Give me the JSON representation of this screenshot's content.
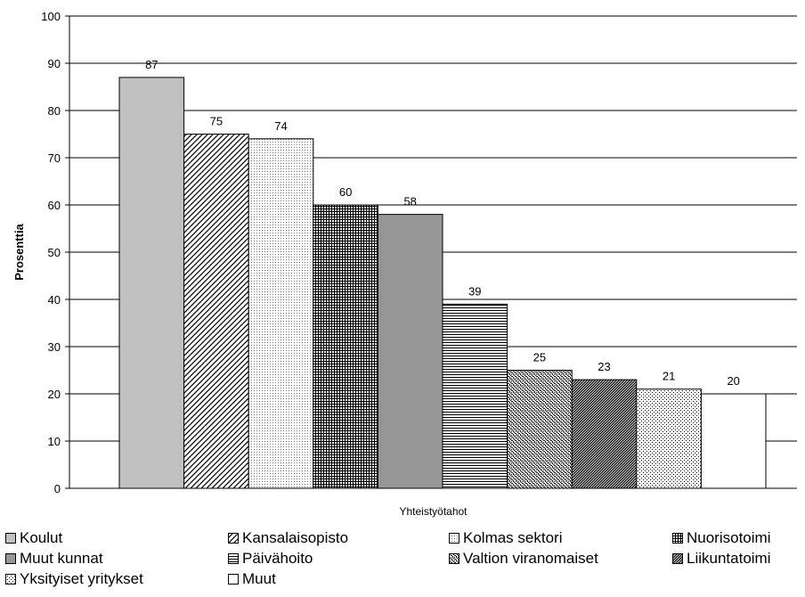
{
  "chart_data": {
    "type": "bar",
    "categories": [
      "Koulut",
      "Kansalaisopisto",
      "Kolmas sektori",
      "Nuorisotoimi",
      "Muut kunnat",
      "Päivähoito",
      "Valtion viranomaiset",
      "Liikuntatoimi",
      "Yksityiset yritykset",
      "Muut"
    ],
    "values": [
      87,
      75,
      74,
      60,
      58,
      39,
      25,
      23,
      21,
      20
    ],
    "data_labels": [
      "87",
      "75",
      "74",
      "60",
      "58",
      "39",
      "25",
      "23",
      "21",
      "20"
    ],
    "xlabel": "Yhteistyötahot",
    "ylabel": "Prosenttia",
    "ylim": [
      0,
      100
    ],
    "yticks": [
      0,
      10,
      20,
      30,
      40,
      50,
      60,
      70,
      80,
      90,
      100
    ],
    "ytick_labels": [
      "0",
      "10",
      "20",
      "30",
      "40",
      "50",
      "60",
      "70",
      "80",
      "90",
      "100"
    ],
    "grid": "horizontal",
    "legend_position": "bottom",
    "bar_styles": [
      {
        "fill": "#c0c0c0",
        "pattern": "solid"
      },
      {
        "fill": "#ffffff",
        "pattern": "diagonal-wide"
      },
      {
        "fill": "#ffffff",
        "pattern": "dots-light"
      },
      {
        "fill": "#ffffff",
        "pattern": "grid-fine"
      },
      {
        "fill": "#969696",
        "pattern": "solid"
      },
      {
        "fill": "#ffffff",
        "pattern": "horizontal-lines"
      },
      {
        "fill": "#ffffff",
        "pattern": "weave"
      },
      {
        "fill": "#ffffff",
        "pattern": "diagonal-dense"
      },
      {
        "fill": "#ffffff",
        "pattern": "dots-sparse"
      },
      {
        "fill": "#ffffff",
        "pattern": "none"
      }
    ]
  }
}
